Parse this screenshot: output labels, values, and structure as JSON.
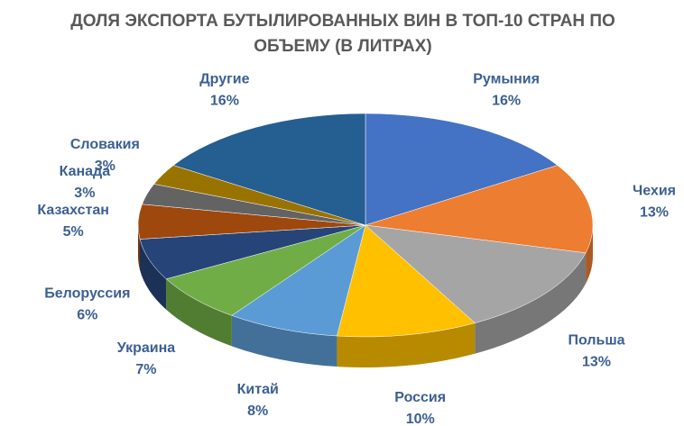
{
  "chart_data": {
    "type": "pie",
    "title": "ДОЛЯ ЭКСПОРТА БУТЫЛИРОВАННЫХ ВИН В ТОП-10 СТРАН ПО ОБЪЕМУ (В ЛИТРАХ)",
    "categories": [
      "Румыния",
      "Чехия",
      "Польша",
      "Россия",
      "Китай",
      "Украина",
      "Белоруссия",
      "Казахстан",
      "Канада",
      "Словакия",
      "Другие"
    ],
    "values": [
      16,
      13,
      13,
      10,
      8,
      7,
      6,
      5,
      3,
      3,
      16
    ],
    "value_labels": [
      "16%",
      "13%",
      "13%",
      "10%",
      "8%",
      "7%",
      "6%",
      "5%",
      "3%",
      "3%",
      "16%"
    ],
    "colors": [
      "#4472c4",
      "#ed7d31",
      "#a5a5a5",
      "#ffc000",
      "#5b9bd5",
      "#70ad47",
      "#264478",
      "#9e480e",
      "#636363",
      "#997300",
      "#255e91"
    ]
  }
}
